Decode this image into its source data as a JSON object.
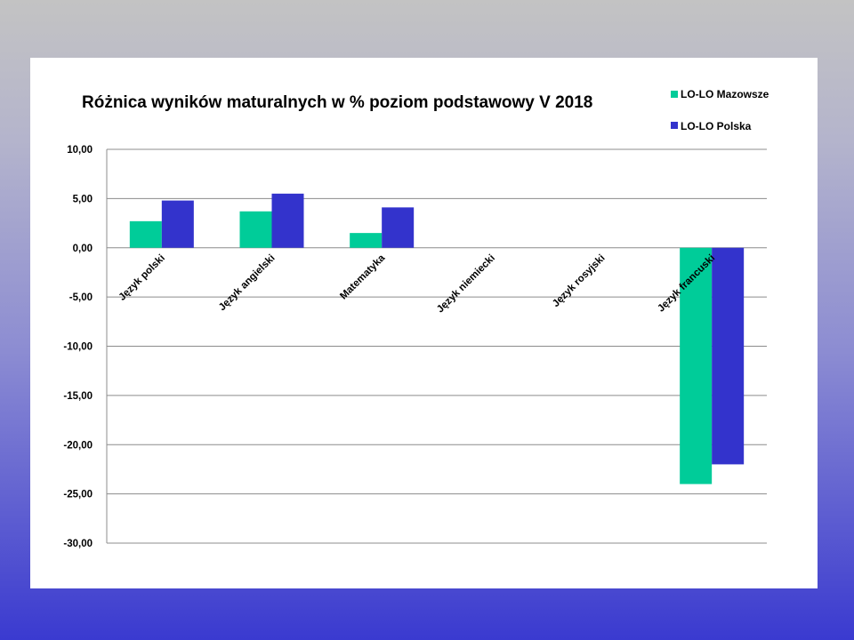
{
  "chart_data": {
    "type": "bar",
    "title": "Różnica wyników maturalnych w % poziom podstawowy V 2018",
    "categories": [
      "Język polski",
      "Język angielski",
      "Matematyka",
      "Język niemiecki",
      "Język rosyjski",
      "Język francuski"
    ],
    "series": [
      {
        "name": "LO-LO Mazowsze",
        "color": "#00cc99",
        "values": [
          2.7,
          3.7,
          1.5,
          0,
          0,
          -24
        ]
      },
      {
        "name": "LO-LO Polska",
        "color": "#3333cc",
        "values": [
          4.8,
          5.5,
          4.1,
          0,
          0,
          -22
        ]
      }
    ],
    "ylim": [
      -30,
      10
    ],
    "yticks": [
      "10,00",
      "5,00",
      "0,00",
      "-5,00",
      "-10,00",
      "-15,00",
      "-20,00",
      "-25,00",
      "-30,00"
    ],
    "grid": true,
    "legend_position": "top-right"
  }
}
